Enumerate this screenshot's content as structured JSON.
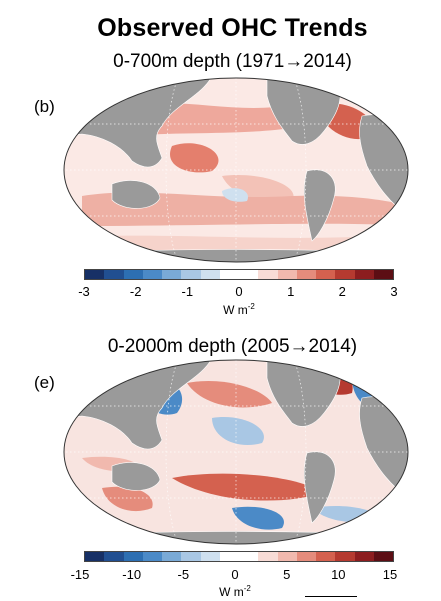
{
  "figure": {
    "title": "Observed OHC Trends"
  },
  "panels": [
    {
      "label": "(b)",
      "subtitle": "0-700m depth (1971→2014)",
      "colorbar": {
        "ticks": [
          "-3",
          "-2",
          "-1",
          "0",
          "1",
          "2",
          "3"
        ],
        "range": [
          -3,
          3
        ],
        "unit": "W m",
        "unit_exponent": "-2"
      }
    },
    {
      "label": "(e)",
      "subtitle": "0-2000m depth (2005→2014)",
      "colorbar": {
        "ticks": [
          "-15",
          "-10",
          "-5",
          "0",
          "5",
          "10",
          "15"
        ],
        "range": [
          -15,
          15
        ],
        "unit": "W m",
        "unit_exponent": "-2"
      }
    }
  ],
  "colors": {
    "land": "#9a9a9a",
    "coast": "#ffffff",
    "graticule": "#ffffff",
    "colormap": [
      "#173066",
      "#214f91",
      "#2d6fb2",
      "#4b8ac7",
      "#7aaad6",
      "#a9c7e4",
      "#cfe0ef",
      "#ffffff",
      "#ffffff",
      "#f8dcd6",
      "#f1b9ae",
      "#e58c7c",
      "#d4614f",
      "#b53a30",
      "#8c1d1f",
      "#5c0e14"
    ]
  }
}
